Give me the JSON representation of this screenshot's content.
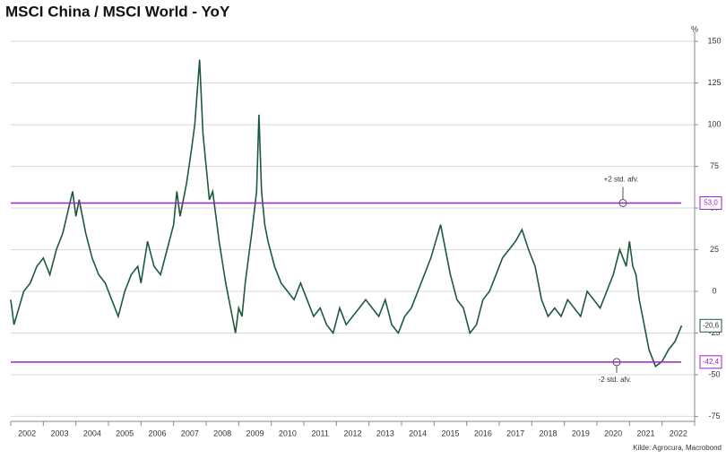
{
  "chart_data": {
    "type": "line",
    "title": "MSCI China / MSCI World - YoY",
    "y_unit": "%",
    "source": "Kilde: Agrocura, Macrobond",
    "xlim": [
      2002,
      2023
    ],
    "xticks": [
      {
        "value": 2002.5,
        "label": "2002"
      },
      {
        "value": 2003.5,
        "label": "2003"
      },
      {
        "value": 2004.5,
        "label": "2004"
      },
      {
        "value": 2005.5,
        "label": "2005"
      },
      {
        "value": 2006.5,
        "label": "2006"
      },
      {
        "value": 2007.5,
        "label": "2007"
      },
      {
        "value": 2008.5,
        "label": "2008"
      },
      {
        "value": 2009.5,
        "label": "2009"
      },
      {
        "value": 2010.5,
        "label": "2010"
      },
      {
        "value": 2011.5,
        "label": "2011"
      },
      {
        "value": 2012.5,
        "label": "2012"
      },
      {
        "value": 2013.5,
        "label": "2013"
      },
      {
        "value": 2014.5,
        "label": "2014"
      },
      {
        "value": 2015.5,
        "label": "2015"
      },
      {
        "value": 2016.5,
        "label": "2016"
      },
      {
        "value": 2017.5,
        "label": "2017"
      },
      {
        "value": 2018.5,
        "label": "2018"
      },
      {
        "value": 2019.5,
        "label": "2019"
      },
      {
        "value": 2020.5,
        "label": "2020"
      },
      {
        "value": 2021.5,
        "label": "2021"
      },
      {
        "value": 2022.5,
        "label": "2022"
      }
    ],
    "ylim": [
      -78,
      156
    ],
    "yticks": [
      -75,
      -50,
      -25,
      0,
      25,
      50,
      75,
      100,
      125,
      150
    ],
    "grid": true,
    "series": [
      {
        "color": "#1d5a3c",
        "x": [
          2002.0,
          2002.1,
          2002.4,
          2002.6,
          2002.8,
          2003.0,
          2003.2,
          2003.4,
          2003.6,
          2003.9,
          2004.0,
          2004.1,
          2004.3,
          2004.5,
          2004.7,
          2004.9,
          2005.1,
          2005.3,
          2005.5,
          2005.7,
          2005.9,
          2006.0,
          2006.2,
          2006.4,
          2006.6,
          2006.8,
          2007.0,
          2007.1,
          2007.2,
          2007.4,
          2007.55,
          2007.65,
          2007.8,
          2007.9,
          2008.0,
          2008.1,
          2008.2,
          2008.4,
          2008.6,
          2008.8,
          2008.9,
          2009.0,
          2009.1,
          2009.2,
          2009.3,
          2009.4,
          2009.55,
          2009.62,
          2009.7,
          2009.8,
          2009.9,
          2010.1,
          2010.3,
          2010.5,
          2010.7,
          2010.9,
          2011.1,
          2011.3,
          2011.5,
          2011.7,
          2011.9,
          2012.1,
          2012.3,
          2012.5,
          2012.7,
          2012.9,
          2013.1,
          2013.3,
          2013.5,
          2013.7,
          2013.9,
          2014.1,
          2014.3,
          2014.5,
          2014.7,
          2014.9,
          2015.2,
          2015.3,
          2015.5,
          2015.7,
          2015.9,
          2016.1,
          2016.3,
          2016.5,
          2016.7,
          2016.9,
          2017.1,
          2017.3,
          2017.5,
          2017.7,
          2017.9,
          2018.1,
          2018.3,
          2018.5,
          2018.7,
          2018.9,
          2019.1,
          2019.3,
          2019.5,
          2019.7,
          2019.9,
          2020.1,
          2020.3,
          2020.5,
          2020.7,
          2020.9,
          2021.0,
          2021.1,
          2021.2,
          2021.3,
          2021.4,
          2021.5,
          2021.6,
          2021.8,
          2022.0,
          2022.2,
          2022.4,
          2022.6
        ],
        "values": [
          -5,
          -20,
          0,
          5,
          15,
          20,
          10,
          25,
          35,
          60,
          45,
          55,
          35,
          20,
          10,
          5,
          -5,
          -15,
          0,
          10,
          15,
          5,
          30,
          15,
          10,
          25,
          40,
          60,
          45,
          65,
          85,
          100,
          139,
          95,
          75,
          55,
          60,
          30,
          5,
          -15,
          -25,
          -10,
          -15,
          5,
          20,
          35,
          60,
          106,
          60,
          40,
          30,
          15,
          5,
          0,
          -5,
          5,
          -5,
          -15,
          -10,
          -20,
          -25,
          -10,
          -20,
          -15,
          -10,
          -5,
          -10,
          -15,
          -5,
          -20,
          -25,
          -15,
          -10,
          0,
          10,
          20,
          40,
          30,
          10,
          -5,
          -10,
          -25,
          -20,
          -5,
          0,
          10,
          20,
          25,
          30,
          37,
          25,
          15,
          -5,
          -15,
          -10,
          -15,
          -5,
          -10,
          -15,
          0,
          -5,
          -10,
          0,
          10,
          25,
          15,
          30,
          15,
          10,
          -5,
          -15,
          -25,
          -35,
          -45,
          -42,
          -35,
          -30,
          -20.6
        ]
      }
    ],
    "end_value_label": "-20,6",
    "hlines": [
      {
        "value": 53.0,
        "label": "53,0",
        "annotation": "+2 std. afv."
      },
      {
        "value": -42.4,
        "label": "-42,4",
        "annotation": "-2 std. afv."
      }
    ],
    "hline_color": "#a020c8"
  }
}
